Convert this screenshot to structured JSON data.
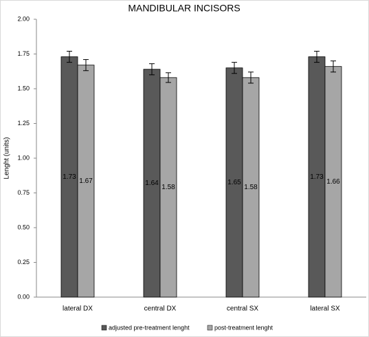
{
  "chart_data": {
    "type": "bar",
    "title": "MANDIBULAR INCISORS",
    "y_label": "Lenght (units)",
    "categories": [
      "lateral DX",
      "central DX",
      "central SX",
      "lateral SX"
    ],
    "series": [
      {
        "name": "adjusted pre-treatment lenght",
        "color": "#595959",
        "values": [
          1.73,
          1.64,
          1.65,
          1.73
        ],
        "errors": [
          0.04,
          0.04,
          0.04,
          0.04
        ]
      },
      {
        "name": "post-treatment lenght",
        "color": "#a6a6a6",
        "values": [
          1.67,
          1.58,
          1.58,
          1.66
        ],
        "errors": [
          0.04,
          0.035,
          0.04,
          0.04
        ]
      }
    ],
    "ylim": [
      0,
      2
    ],
    "yticks": [
      {
        "value": 0,
        "label": "0.00"
      },
      {
        "value": 0.25,
        "label": "0.25"
      },
      {
        "value": 0.5,
        "label": "0.50"
      },
      {
        "value": 0.75,
        "label": "0.75"
      },
      {
        "value": 1,
        "label": "1.00"
      },
      {
        "value": 1.25,
        "label": "1.25"
      },
      {
        "value": 1.5,
        "label": "1.50"
      },
      {
        "value": 1.75,
        "label": "1.75"
      },
      {
        "value": 2,
        "label": "2.00"
      }
    ],
    "legend": "bottom"
  }
}
